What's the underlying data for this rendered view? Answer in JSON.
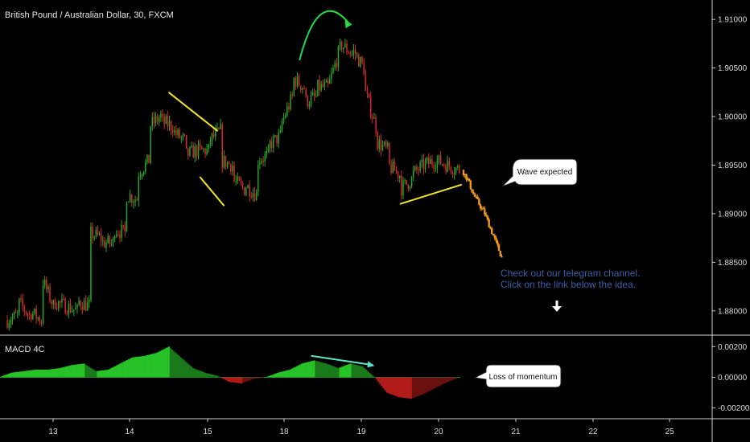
{
  "title": "British Pound / Australian Dollar, 30, FXCM",
  "indicator_label": "MACD 4C",
  "callouts": {
    "wave": "Wave expected",
    "momentum": "Loss of momentum"
  },
  "note": {
    "line1": "Check out our telegram channel.",
    "line2": "Click on the link below the idea."
  },
  "colors": {
    "bull": "#26a826",
    "bear": "#d62a2a",
    "projection": "#f29a1a",
    "trendline": "#f5e52a",
    "arrow": "#22dd44",
    "divergence": "#5ae6c8",
    "macd_pos_strong": "#27c227",
    "macd_pos_weak": "#1a7a1a",
    "macd_neg_strong": "#b31a1a",
    "macd_neg_weak": "#6b1010"
  },
  "chart_data": {
    "type": "candlestick",
    "price_axis": {
      "range": [
        1.8775,
        1.912
      ],
      "ticks": [
        "1.91000",
        "1.90500",
        "1.90000",
        "1.89500",
        "1.89000",
        "1.88500",
        "1.88000"
      ]
    },
    "macd_axis": {
      "range": [
        -0.0027,
        0.0027
      ],
      "ticks": [
        "0.00200",
        "0.00000",
        "-0.00200"
      ]
    },
    "x_axis": {
      "ticks": [
        "13",
        "14",
        "15",
        "18",
        "19",
        "20",
        "21",
        "22",
        "25"
      ]
    },
    "price_path": [
      [
        1.879,
        1.8795
      ],
      [
        1.881,
        1.8795
      ],
      [
        1.88,
        1.879
      ],
      [
        1.8835,
        1.8805
      ],
      [
        1.881,
        1.8805
      ],
      [
        1.8805,
        1.88
      ],
      [
        1.881,
        1.8805
      ],
      [
        1.888,
        1.8875
      ],
      [
        1.887,
        1.887
      ],
      [
        1.8885,
        1.888
      ],
      [
        1.892,
        1.8915
      ],
      [
        1.894,
        1.8955
      ],
      [
        1.899,
        1.9
      ],
      [
        1.8995,
        1.899
      ],
      [
        1.8985,
        1.8975
      ],
      [
        1.896,
        1.8965
      ],
      [
        1.8965,
        1.8965
      ],
      [
        1.8975,
        1.8985
      ],
      [
        1.8955,
        1.895
      ],
      [
        1.8935,
        1.8925
      ],
      [
        1.893,
        1.892
      ],
      [
        1.8955,
        1.896
      ],
      [
        1.897,
        1.898
      ],
      [
        1.899,
        1.902
      ],
      [
        1.904,
        1.903
      ],
      [
        1.9015,
        1.902
      ],
      [
        1.903,
        1.903
      ],
      [
        1.903,
        1.907
      ],
      [
        1.9075,
        1.9065
      ],
      [
        1.907,
        1.905
      ],
      [
        1.903,
        1.899
      ],
      [
        1.8975,
        1.8965
      ],
      [
        1.895,
        1.894
      ],
      [
        1.8925,
        1.8935
      ],
      [
        1.894,
        1.895
      ],
      [
        1.895,
        1.8955
      ],
      [
        1.8955,
        1.895
      ],
      [
        1.895,
        1.8945
      ]
    ],
    "projection_path": [
      1.8945,
      1.8935,
      1.892,
      1.891,
      1.89,
      1.8885,
      1.887,
      1.8855
    ],
    "macd_path": [
      [
        0.0,
        0.0003
      ],
      [
        0.0003,
        0.0004
      ],
      [
        0.0004,
        0.0005
      ],
      [
        0.0005,
        0.0005
      ],
      [
        0.0005,
        0.0006
      ],
      [
        0.0006,
        0.0008
      ],
      [
        0.0008,
        0.0009
      ],
      [
        0.0009,
        0.0004
      ],
      [
        0.0004,
        0.0005
      ],
      [
        0.0005,
        0.0009
      ],
      [
        0.0009,
        0.0013
      ],
      [
        0.0013,
        0.0014
      ],
      [
        0.0014,
        0.0016
      ],
      [
        0.0016,
        0.002
      ],
      [
        0.002,
        0.0013
      ],
      [
        0.0013,
        0.0006
      ],
      [
        0.0006,
        0.0003
      ],
      [
        0.0003,
        0.0001
      ],
      [
        0.0001,
        -0.0003
      ],
      [
        -0.0003,
        -0.0004
      ],
      [
        -0.0004,
        -0.0001
      ],
      [
        -0.0001,
        0.0
      ],
      [
        0.0,
        0.0003
      ],
      [
        0.0003,
        0.0005
      ],
      [
        0.0005,
        0.0009
      ],
      [
        0.0009,
        0.0011
      ],
      [
        0.0011,
        0.0009
      ],
      [
        0.0009,
        0.0006
      ],
      [
        0.0006,
        0.0009
      ],
      [
        0.0009,
        0.0007
      ],
      [
        0.0007,
        0.0
      ],
      [
        0.0,
        -0.001
      ],
      [
        -0.001,
        -0.0013
      ],
      [
        -0.0013,
        -0.0014
      ],
      [
        -0.0014,
        -0.0011
      ],
      [
        -0.0011,
        -0.0007
      ],
      [
        -0.0007,
        -0.0003
      ],
      [
        -0.0003,
        0.0
      ]
    ],
    "trendlines": [
      {
        "from": [
          14.5,
          1.9025
        ],
        "to": [
          15.4,
          1.8985
        ]
      },
      {
        "from": [
          14.9,
          1.8938
        ],
        "to": [
          15.65,
          1.8908
        ]
      },
      {
        "from": [
          19.5,
          1.891
        ],
        "to": [
          20.3,
          1.893
        ]
      }
    ],
    "divergence_line": {
      "from": [
        18.35,
        0.0014
      ],
      "to": [
        19.15,
        0.0008
      ]
    }
  }
}
